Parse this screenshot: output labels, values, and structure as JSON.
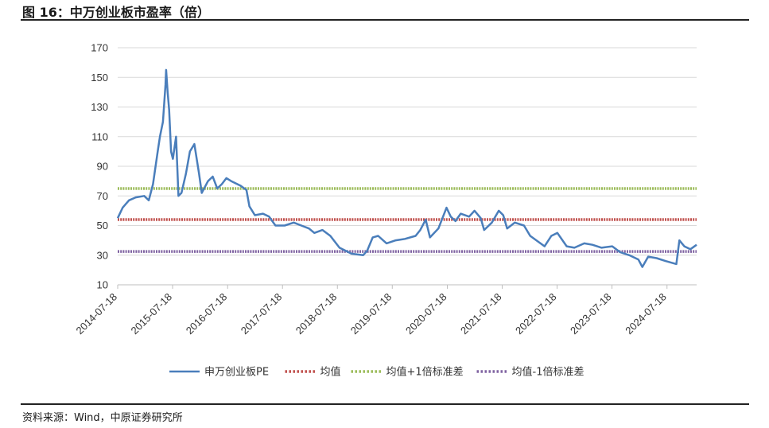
{
  "figure": {
    "title": "图 16：中万创业板市盈率（倍）",
    "source": "资料来源：Wind，中原证券研究所"
  },
  "chart_data": {
    "type": "line",
    "title": "",
    "xlabel": "",
    "ylabel": "",
    "ylim": [
      10,
      170
    ],
    "y_ticks": [
      "10",
      "30",
      "50",
      "70",
      "90",
      "110",
      "130",
      "150",
      "170"
    ],
    "x_range": [
      "2014-07-18",
      "2025-01-31"
    ],
    "x_tick_labels": [
      "2014-07-18",
      "2015-07-18",
      "2016-07-18",
      "2017-07-18",
      "2018-07-18",
      "2019-07-18",
      "2020-07-18",
      "2021-07-18",
      "2022-07-18",
      "2023-07-18",
      "2024-07-18"
    ],
    "grid": "horizontal",
    "legend_position": "bottom",
    "series": [
      {
        "name": "申万创业板PE",
        "color": "#4a7ebb",
        "style": "solid",
        "points": [
          [
            "2014-07-18",
            55
          ],
          [
            "2014-08-20",
            62
          ],
          [
            "2014-10-01",
            67
          ],
          [
            "2014-11-15",
            69
          ],
          [
            "2015-01-10",
            70
          ],
          [
            "2015-02-10",
            67
          ],
          [
            "2015-03-10",
            78
          ],
          [
            "2015-04-10",
            100
          ],
          [
            "2015-04-25",
            110
          ],
          [
            "2015-05-15",
            120
          ],
          [
            "2015-06-01",
            145
          ],
          [
            "2015-06-05",
            155
          ],
          [
            "2015-06-15",
            140
          ],
          [
            "2015-06-25",
            128
          ],
          [
            "2015-07-08",
            100
          ],
          [
            "2015-07-20",
            95
          ],
          [
            "2015-08-10",
            110
          ],
          [
            "2015-08-26",
            70
          ],
          [
            "2015-09-15",
            72
          ],
          [
            "2015-10-15",
            85
          ],
          [
            "2015-11-10",
            100
          ],
          [
            "2015-12-10",
            105
          ],
          [
            "2016-01-10",
            85
          ],
          [
            "2016-01-28",
            72
          ],
          [
            "2016-03-10",
            80
          ],
          [
            "2016-04-10",
            83
          ],
          [
            "2016-05-10",
            75
          ],
          [
            "2016-06-10",
            78
          ],
          [
            "2016-07-10",
            82
          ],
          [
            "2016-08-10",
            80
          ],
          [
            "2016-10-10",
            77
          ],
          [
            "2016-11-20",
            74
          ],
          [
            "2016-12-10",
            63
          ],
          [
            "2017-01-15",
            57
          ],
          [
            "2017-03-10",
            58
          ],
          [
            "2017-04-20",
            56
          ],
          [
            "2017-06-01",
            50
          ],
          [
            "2017-08-01",
            50
          ],
          [
            "2017-10-01",
            52
          ],
          [
            "2017-11-20",
            50
          ],
          [
            "2018-01-10",
            48
          ],
          [
            "2018-02-15",
            45
          ],
          [
            "2018-04-10",
            47
          ],
          [
            "2018-06-01",
            43
          ],
          [
            "2018-08-01",
            35
          ],
          [
            "2018-10-20",
            31
          ],
          [
            "2019-01-05",
            30
          ],
          [
            "2019-02-01",
            33
          ],
          [
            "2019-03-10",
            42
          ],
          [
            "2019-04-15",
            43
          ],
          [
            "2019-06-10",
            38
          ],
          [
            "2019-08-10",
            40
          ],
          [
            "2019-10-10",
            41
          ],
          [
            "2019-12-20",
            43
          ],
          [
            "2020-01-20",
            47
          ],
          [
            "2020-02-25",
            54
          ],
          [
            "2020-03-25",
            42
          ],
          [
            "2020-05-20",
            48
          ],
          [
            "2020-07-13",
            62
          ],
          [
            "2020-08-10",
            56
          ],
          [
            "2020-09-10",
            53
          ],
          [
            "2020-10-15",
            58
          ],
          [
            "2020-12-10",
            56
          ],
          [
            "2021-01-15",
            60
          ],
          [
            "2021-02-25",
            55
          ],
          [
            "2021-03-20",
            47
          ],
          [
            "2021-05-10",
            52
          ],
          [
            "2021-06-25",
            60
          ],
          [
            "2021-07-25",
            57
          ],
          [
            "2021-08-20",
            48
          ],
          [
            "2021-10-10",
            52
          ],
          [
            "2021-12-10",
            50
          ],
          [
            "2022-01-20",
            43
          ],
          [
            "2022-04-26",
            36
          ],
          [
            "2022-06-10",
            43
          ],
          [
            "2022-07-20",
            45
          ],
          [
            "2022-09-20",
            36
          ],
          [
            "2022-11-10",
            35
          ],
          [
            "2023-01-15",
            38
          ],
          [
            "2023-03-10",
            37
          ],
          [
            "2023-05-10",
            35
          ],
          [
            "2023-07-20",
            36
          ],
          [
            "2023-09-10",
            32
          ],
          [
            "2023-11-10",
            30
          ],
          [
            "2024-01-10",
            27
          ],
          [
            "2024-02-05",
            22
          ],
          [
            "2024-03-15",
            29
          ],
          [
            "2024-05-10",
            28
          ],
          [
            "2024-07-10",
            26
          ],
          [
            "2024-09-18",
            24
          ],
          [
            "2024-10-08",
            40
          ],
          [
            "2024-11-10",
            36
          ],
          [
            "2024-12-20",
            34
          ],
          [
            "2025-01-31",
            37
          ]
        ]
      },
      {
        "name": "均值",
        "color": "#c0504d",
        "style": "dotted",
        "value": 54
      },
      {
        "name": "均值+1倍标准差",
        "color": "#9bbb59",
        "style": "dotted",
        "value": 75
      },
      {
        "name": "均值-1倍标准差",
        "color": "#8064a2",
        "style": "dotted",
        "value": 32.5
      }
    ]
  }
}
